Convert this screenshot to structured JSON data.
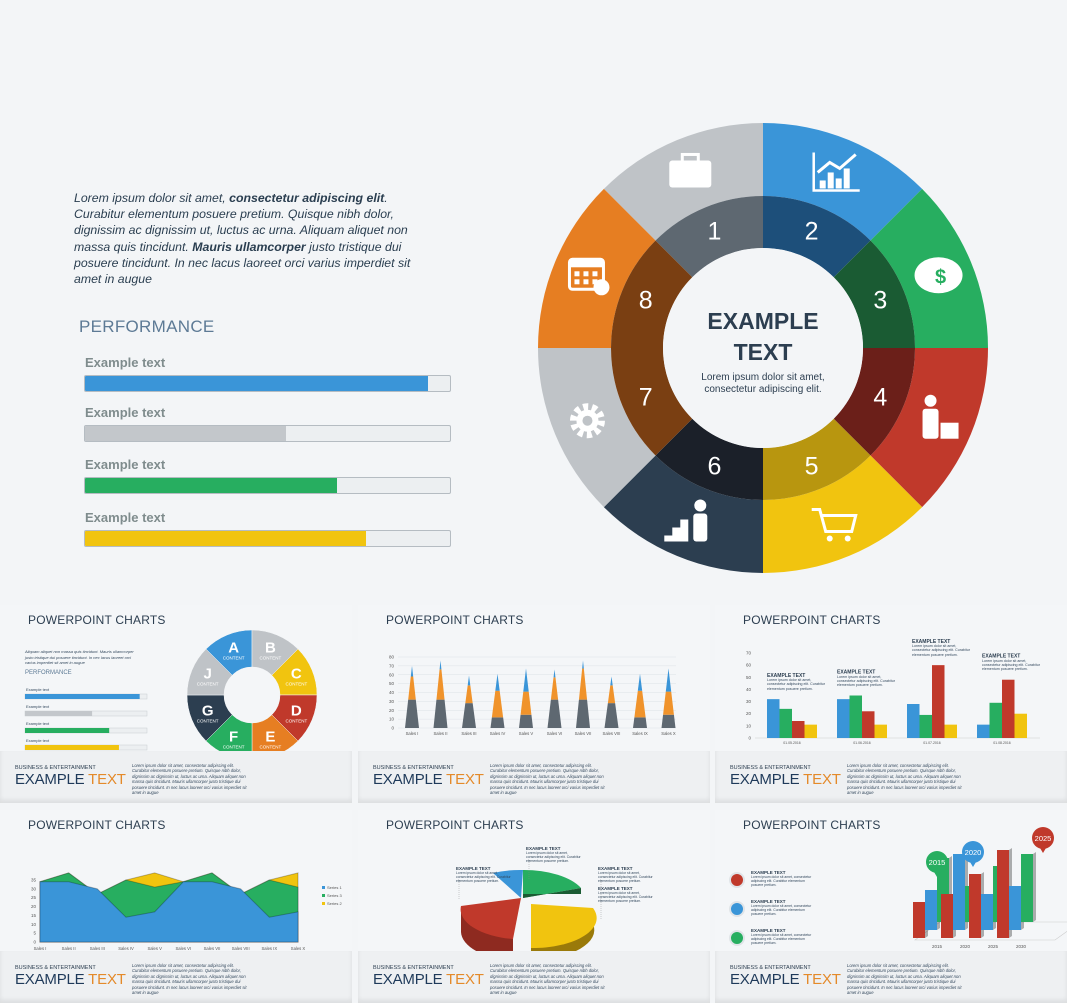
{
  "intro": {
    "p1": "Lorem ipsum dolor sit amet, ",
    "b1": "consectetur adipiscing elit",
    "p2": ". Curabitur elementum posuere pretium. Quisque nibh dolor, dignissim ac dignissim ut, luctus ac urna. Aliquam aliquet non massa quis tincidunt. ",
    "b2": "Mauris ullamcorper",
    "p3": " justo tristique dui posuere tincidunt. In nec lacus laoreet orci varius imperdiet sit amet in augue"
  },
  "performance": {
    "title": "PERFORMANCE",
    "bars": [
      {
        "label": "Example text",
        "percent": 94,
        "color": "#3a95d8"
      },
      {
        "label": "Example text",
        "percent": 55,
        "color": "#c3c7cb"
      },
      {
        "label": "Example text",
        "percent": 69,
        "color": "#27ae60"
      },
      {
        "label": "Example text",
        "percent": 77,
        "color": "#f1c40f"
      }
    ]
  },
  "wheel": {
    "title": "EXAMPLE TEXT",
    "subtitle": "Lorem ipsum dolor sit amet, consectetur adipiscing elit.",
    "segments": [
      {
        "number": "1",
        "icon": "briefcase-icon",
        "outer": "#bfc3c7",
        "inner": "#5e6871"
      },
      {
        "number": "2",
        "icon": "chart-growth-icon",
        "outer": "#3a95d8",
        "inner": "#1d4f7a"
      },
      {
        "number": "3",
        "icon": "piggy-bank-icon",
        "outer": "#27ae60",
        "inner": "#1a5b33"
      },
      {
        "number": "4",
        "icon": "person-puzzle-icon",
        "outer": "#c0392b",
        "inner": "#6b1f19"
      },
      {
        "number": "5",
        "icon": "cart-icon",
        "outer": "#f1c40f",
        "inner": "#b8960f"
      },
      {
        "number": "6",
        "icon": "person-stairs-icon",
        "outer": "#2c3e50",
        "inner": "#1b2029"
      },
      {
        "number": "7",
        "icon": "gear-icon",
        "outer": "#bfc3c7",
        "inner": "#7a3f12"
      },
      {
        "number": "8",
        "icon": "calendar-icon",
        "outer": "#e67e22",
        "inner": "#7a3f12"
      }
    ]
  },
  "thumbs": {
    "title": "POWERPOINT CHARTS",
    "category": "BUSINESS & ENTERTAINMENT",
    "big1": "EXAMPLE",
    "big2": "TEXT",
    "lorem": "Lorem ipsum dolor sit amet, consectetur adipiscing elit. Curabitur elementum posuere pretium. Quisque nibh dolor, dignissim ac dignissim ut, luctus ac urna. Aliquam aliquet non massa quis tincidunt. Mauris ullamcorper justo tristique dui posuere tincidunt. In nec lacus laoreet orci varius imperdiet sit amet in augue",
    "callout_title": "EXAMPLE TEXT",
    "callout_text": "Lorem ipsum dolor sit amet, consectetur adipiscing elit. Curabitur elementum posuere pretium.",
    "t1_text": "Aliquam aliquet non massa quis tincidunt. Mauris ullamcorper justo tristique dui posuere tincidunt. In nec lacus laoreet orci varius imperdiet sit amet in augue",
    "t1_perf": "PERFORMANCE",
    "t1_bar_label": "Example text",
    "t1_content": "CONTENT",
    "t1_letters": [
      {
        "l": "A",
        "c": "#3a95d8"
      },
      {
        "l": "B",
        "c": "#bfc3c7"
      },
      {
        "l": "C",
        "c": "#f1c40f"
      },
      {
        "l": "D",
        "c": "#c0392b"
      },
      {
        "l": "E",
        "c": "#e67e22"
      },
      {
        "l": "F",
        "c": "#27ae60"
      },
      {
        "l": "G",
        "c": "#2c3e50"
      },
      {
        "l": "J",
        "c": "#bfc3c7"
      }
    ]
  },
  "chart_data": [
    {
      "type": "bar",
      "stacked": true,
      "categories": [
        "Sales I",
        "Sales II",
        "Sales III",
        "Sales IV",
        "Sales V",
        "Sales VI",
        "Sales VII",
        "Sales VIII",
        "Sales IX",
        "Sales X"
      ],
      "series": [
        {
          "values": [
            32,
            32,
            28,
            12,
            15,
            32,
            32,
            28,
            12,
            15
          ],
          "color": "#5e6871"
        },
        {
          "values": [
            26,
            34,
            20,
            30,
            26,
            25,
            35,
            20,
            30,
            26
          ],
          "color": "#f0932b"
        },
        {
          "values": [
            12,
            10,
            11,
            19,
            26,
            9,
            9,
            10,
            19,
            26
          ],
          "color": "#3a95d8"
        }
      ],
      "ylim": [
        0,
        80
      ],
      "yticks": [
        0,
        10,
        20,
        30,
        40,
        50,
        60,
        70,
        80
      ],
      "grid": true
    },
    {
      "type": "bar",
      "categories": [
        "01.05.2016",
        "01.06.2016",
        "01.07.2016",
        "01.08.2016"
      ],
      "series": [
        {
          "values": [
            32,
            32,
            28,
            11
          ],
          "color": "#3a95d8"
        },
        {
          "values": [
            24,
            35,
            19,
            29
          ],
          "color": "#27ae60"
        },
        {
          "values": [
            14,
            22,
            60,
            48
          ],
          "color": "#c0392b"
        },
        {
          "values": [
            11,
            11,
            11,
            20
          ],
          "color": "#f1c40f"
        }
      ],
      "ylim": [
        0,
        70
      ],
      "yticks": [
        0,
        10,
        20,
        30,
        40,
        50,
        60,
        70
      ]
    },
    {
      "type": "area",
      "categories": [
        "Sales I",
        "Sales II",
        "Sales III",
        "Sales IV",
        "Sales V",
        "Sales VI",
        "Sales VII",
        "Sales VIII",
        "Sales IX",
        "Sales X"
      ],
      "series": [
        {
          "name": "Series 1",
          "values": [
            34,
            34,
            30,
            14,
            17,
            34,
            34,
            30,
            14,
            17
          ],
          "color": "#3a95d8"
        },
        {
          "name": "Series 3",
          "values": [
            34,
            39,
            27,
            35,
            31,
            34,
            39,
            27,
            35,
            31
          ],
          "color": "#27ae60"
        },
        {
          "name": "Series 2",
          "values": [
            34,
            39,
            27,
            35,
            39,
            34,
            39,
            27,
            35,
            39
          ],
          "color": "#f1c40f"
        }
      ],
      "ylim": [
        0,
        35
      ],
      "yticks": [
        0,
        5,
        10,
        15,
        20,
        25,
        30,
        35
      ],
      "legend": "right"
    },
    {
      "type": "pie",
      "three_d": true,
      "slices": [
        {
          "value": 28,
          "color": "#27ae60"
        },
        {
          "value": 30,
          "color": "#f1c40f",
          "exploded": true
        },
        {
          "value": 36,
          "color": "#c0392b"
        },
        {
          "value": 6,
          "color": "#3a95d8"
        }
      ]
    },
    {
      "type": "bar",
      "three_d": true,
      "categories": [
        "2015",
        "2020",
        "2025",
        "2030"
      ],
      "markers": [
        "2015",
        "2020",
        "2025"
      ],
      "series": [
        {
          "values": [
            80,
            45,
            70,
            85
          ],
          "color": "#27ae60"
        },
        {
          "values": [
            50,
            95,
            45,
            55
          ],
          "color": "#3a95d8"
        },
        {
          "values": [
            45,
            55,
            80,
            110
          ],
          "color": "#c0392b"
        }
      ]
    }
  ]
}
